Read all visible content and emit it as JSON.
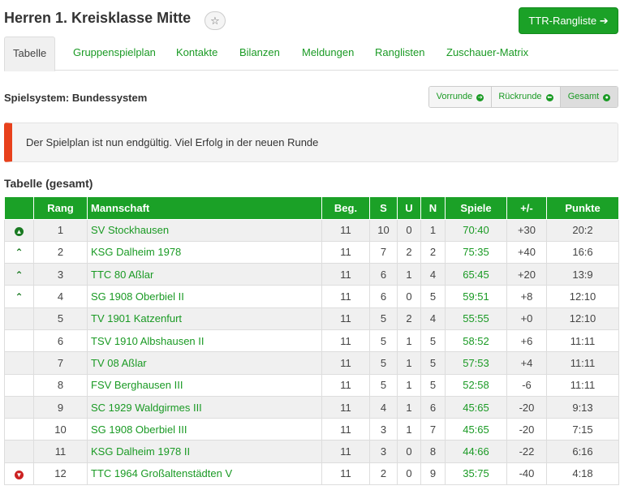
{
  "header": {
    "title": "Herren 1. Kreisklasse Mitte",
    "star_icon": "☆",
    "ttr_button": "TTR-Rangliste ➔"
  },
  "tabs": [
    {
      "label": "Tabelle"
    },
    {
      "label": "Gruppenspielplan"
    },
    {
      "label": "Kontakte"
    },
    {
      "label": "Bilanzen"
    },
    {
      "label": "Meldungen"
    },
    {
      "label": "Ranglisten"
    },
    {
      "label": "Zuschauer-Matrix"
    }
  ],
  "system_label": "Spielsystem: Bundessystem",
  "round_buttons": [
    {
      "label": "Vorrunde",
      "icon": "arrow-right-circle-icon",
      "glyph": "➔"
    },
    {
      "label": "Rückrunde",
      "icon": "arrow-left-circle-icon",
      "glyph": "⬅"
    },
    {
      "label": "Gesamt",
      "icon": "dot-circle-icon",
      "glyph": "●"
    }
  ],
  "alert": "Der Spielplan ist nun endgültig. Viel Erfolg in der neuen Runde",
  "section_title": "Tabelle (gesamt)",
  "table": {
    "headers": [
      "",
      "Rang",
      "Mannschaft",
      "Beg.",
      "S",
      "U",
      "N",
      "Spiele",
      "+/-",
      "Punkte"
    ],
    "rows": [
      {
        "trend": "up-circle",
        "rang": "1",
        "team": "SV Stockhausen",
        "beg": "11",
        "s": "10",
        "u": "0",
        "n": "1",
        "spiele": "70:40",
        "diff": "+30",
        "punkte": "20:2"
      },
      {
        "trend": "up",
        "rang": "2",
        "team": "KSG Dalheim 1978",
        "beg": "11",
        "s": "7",
        "u": "2",
        "n": "2",
        "spiele": "75:35",
        "diff": "+40",
        "punkte": "16:6"
      },
      {
        "trend": "up",
        "rang": "3",
        "team": "TTC 80 Aßlar",
        "beg": "11",
        "s": "6",
        "u": "1",
        "n": "4",
        "spiele": "65:45",
        "diff": "+20",
        "punkte": "13:9"
      },
      {
        "trend": "up",
        "rang": "4",
        "team": "SG 1908 Oberbiel II",
        "beg": "11",
        "s": "6",
        "u": "0",
        "n": "5",
        "spiele": "59:51",
        "diff": "+8",
        "punkte": "12:10"
      },
      {
        "trend": "",
        "rang": "5",
        "team": "TV 1901 Katzenfurt",
        "beg": "11",
        "s": "5",
        "u": "2",
        "n": "4",
        "spiele": "55:55",
        "diff": "+0",
        "punkte": "12:10"
      },
      {
        "trend": "",
        "rang": "6",
        "team": "TSV 1910 Albshausen II",
        "beg": "11",
        "s": "5",
        "u": "1",
        "n": "5",
        "spiele": "58:52",
        "diff": "+6",
        "punkte": "11:11"
      },
      {
        "trend": "",
        "rang": "7",
        "team": "TV 08 Aßlar",
        "beg": "11",
        "s": "5",
        "u": "1",
        "n": "5",
        "spiele": "57:53",
        "diff": "+4",
        "punkte": "11:11"
      },
      {
        "trend": "",
        "rang": "8",
        "team": "FSV Berghausen III",
        "beg": "11",
        "s": "5",
        "u": "1",
        "n": "5",
        "spiele": "52:58",
        "diff": "-6",
        "punkte": "11:11"
      },
      {
        "trend": "",
        "rang": "9",
        "team": "SC 1929 Waldgirmes III",
        "beg": "11",
        "s": "4",
        "u": "1",
        "n": "6",
        "spiele": "45:65",
        "diff": "-20",
        "punkte": "9:13"
      },
      {
        "trend": "",
        "rang": "10",
        "team": "SG 1908 Oberbiel III",
        "beg": "11",
        "s": "3",
        "u": "1",
        "n": "7",
        "spiele": "45:65",
        "diff": "-20",
        "punkte": "7:15"
      },
      {
        "trend": "",
        "rang": "11",
        "team": "KSG Dalheim 1978 II",
        "beg": "11",
        "s": "3",
        "u": "0",
        "n": "8",
        "spiele": "44:66",
        "diff": "-22",
        "punkte": "6:16"
      },
      {
        "trend": "down-circle",
        "rang": "12",
        "team": "TTC 1964 Großaltenstädten V",
        "beg": "11",
        "s": "2",
        "u": "0",
        "n": "9",
        "spiele": "35:75",
        "diff": "-40",
        "punkte": "4:18"
      }
    ]
  },
  "colors": {
    "brand_green": "#1ba127",
    "link_green": "#1a9a24",
    "alert_red": "#e8411c",
    "down_red": "#cc2222"
  }
}
